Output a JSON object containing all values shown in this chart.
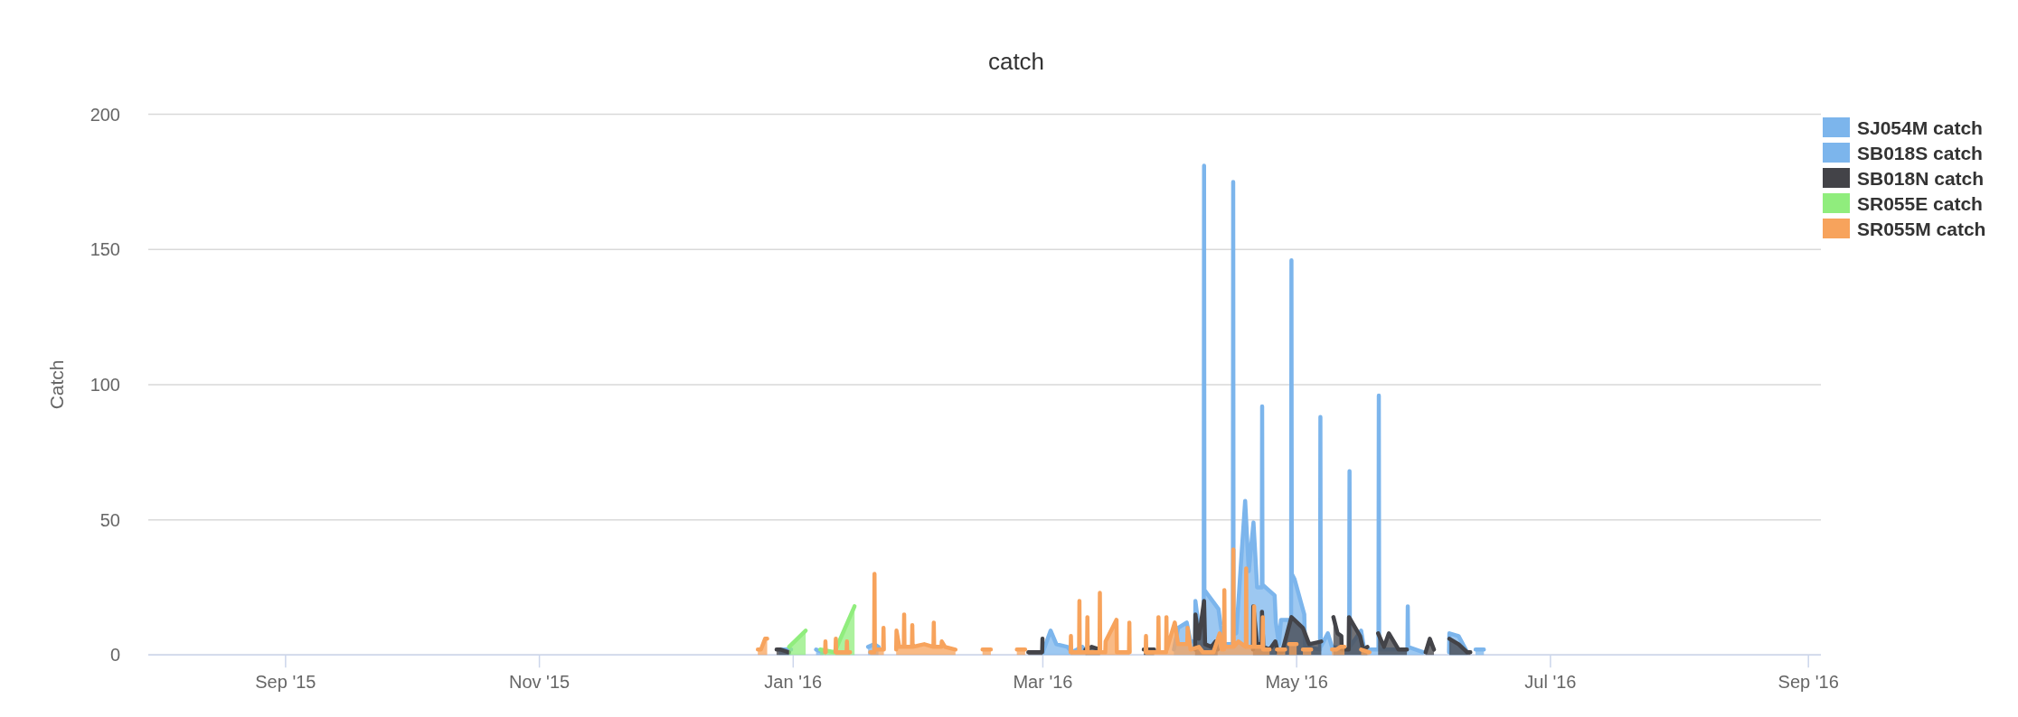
{
  "chart_data": {
    "type": "area",
    "title": "catch",
    "ylabel": "Catch",
    "xlim": [
      "2015-07-30",
      "2016-09-04"
    ],
    "xticks": [
      {
        "value": "2015-09-01",
        "label": "Sep '15"
      },
      {
        "value": "2015-11-01",
        "label": "Nov '15"
      },
      {
        "value": "2016-01-01",
        "label": "Jan '16"
      },
      {
        "value": "2016-03-01",
        "label": "Mar '16"
      },
      {
        "value": "2016-05-01",
        "label": "May '16"
      },
      {
        "value": "2016-07-01",
        "label": "Jul '16"
      },
      {
        "value": "2016-09-01",
        "label": "Sep '16"
      }
    ],
    "ylim": [
      0,
      200
    ],
    "yticks": [
      0,
      50,
      100,
      150,
      200
    ],
    "grid": "y",
    "legend": "top right",
    "series": [
      {
        "name": "SJ054M catch",
        "color": "#7cb5ec",
        "x": [
          "2015-12-28T12:00",
          "2015-12-31T12:00",
          "2016-01-02T00:00",
          "2016-01-06T12:00",
          "2016-01-08T06:00",
          "2016-01-10T00:00",
          "2016-01-19T00:00",
          "2016-01-20T12:00",
          "2016-01-21T12:00",
          "2016-01-24T00:00",
          "2016-03-01T00:00",
          "2016-03-02T21:00",
          "2016-03-04T06:00",
          "2016-03-06T22:00",
          "2016-03-08T00:00",
          "2016-03-10T12:00",
          "2016-03-11T12:00"
        ],
        "values": [
          2,
          2,
          null,
          2,
          1,
          null,
          3,
          4,
          3,
          null,
          1,
          9,
          4,
          3,
          1,
          3,
          1
        ]
      },
      {
        "name": "SB018S catch",
        "color": "#7cb5ec",
        "x": [
          "2016-04-01T12:00",
          "2016-04-02T12:00",
          "2016-04-04T14:00",
          "2016-04-05T12:00",
          "2016-04-06T14:00",
          "2016-04-06T16:00",
          "2016-04-07T12:00",
          "2016-04-08T16:00",
          "2016-04-08T18:00",
          "2016-04-08T20:00",
          "2016-04-12T05:00",
          "2016-04-12T18:00",
          "2016-04-13T12:00",
          "2016-04-15T16:00",
          "2016-04-15T18:00",
          "2016-04-15T20:00",
          "2016-04-16T12:00",
          "2016-04-18T15:00",
          "2016-04-19T12:00",
          "2016-04-20T15:00",
          "2016-04-21T12:00",
          "2016-04-22T15:00",
          "2016-04-22T17:00",
          "2016-04-22T19:00",
          "2016-04-25T17:00",
          "2016-04-26T00:00",
          "2016-04-26T18:00",
          "2016-04-27T06:00",
          "2016-04-29T16:00",
          "2016-04-29T18:00",
          "2016-04-29T20:00",
          "2016-04-30T12:00",
          "2016-05-02T20:00",
          "2016-05-03T00:00",
          "2016-05-06T15:00",
          "2016-05-06T17:00",
          "2016-05-06T19:00",
          "2016-05-08T12:00",
          "2016-05-09T12:00",
          "2016-05-13T15:00",
          "2016-05-13T17:00",
          "2016-05-13T19:00",
          "2016-05-16T12:00",
          "2016-05-17T06:00",
          "2016-05-20T16:00",
          "2016-05-20T18:00",
          "2016-05-20T20:00",
          "2016-05-27T15:00",
          "2016-05-27T17:00",
          "2016-05-27T19:00",
          "2016-05-31T12:00",
          "2016-06-03T00:00",
          "2016-06-06T15:00",
          "2016-06-06T17:00",
          "2016-06-08T22:00",
          "2016-06-11T00:00",
          "2016-06-12T00:00",
          "2016-06-13T00:00",
          "2016-06-15T00:00"
        ],
        "values": [
          2,
          10,
          12,
          5,
          5,
          20,
          10,
          12,
          181,
          24,
          17,
          11,
          4,
          4,
          175,
          10,
          8,
          57,
          31,
          49,
          25,
          25,
          92,
          26,
          22,
          12,
          4,
          13,
          13,
          146,
          30,
          28,
          15,
          3,
          2,
          88,
          3,
          8,
          3,
          2,
          68,
          3,
          9,
          2,
          2,
          96,
          2,
          2,
          18,
          3,
          1,
          null,
          1,
          8,
          7,
          1,
          null,
          2,
          2
        ]
      },
      {
        "name": "SB018N catch",
        "color": "#434348",
        "x": [
          "2015-12-28T00:00",
          "2015-12-29T00:00",
          "2015-12-31T00:00",
          "2016-01-02T00:00",
          "2016-02-26T12:00",
          "2016-02-29T20:00",
          "2016-02-29T22:00",
          "2016-03-01T12:00",
          "2016-03-11T06:00",
          "2016-03-12T18:00",
          "2016-03-14T18:00",
          "2016-03-16T00:00",
          "2016-03-25T06:00",
          "2016-03-27T18:00",
          "2016-03-29T00:00",
          "2016-04-06T14:00",
          "2016-04-06T16:00",
          "2016-04-07T12:00",
          "2016-04-08T18:00",
          "2016-04-09T00:00",
          "2016-04-10T12:00",
          "2016-04-11T12:00",
          "2016-04-12T00:00",
          "2016-04-13T00:00",
          "2016-04-20T12:00",
          "2016-04-20T14:00",
          "2016-04-21T12:00",
          "2016-04-22T14:00",
          "2016-04-22T16:00",
          "2016-04-23T00:00",
          "2016-04-24T12:00",
          "2016-04-25T21:00",
          "2016-04-26T12:00",
          "2016-04-27T12:00",
          "2016-04-29T18:00",
          "2016-05-02T12:00",
          "2016-05-04T00:00",
          "2016-05-06T22:00",
          "2016-05-07T12:00",
          "2016-05-09T20:00",
          "2016-05-10T20:00",
          "2016-05-11T18:00",
          "2016-05-11T20:00",
          "2016-05-13T12:00",
          "2016-05-13T14:00",
          "2016-05-16T06:00",
          "2016-05-17T00:00",
          "2016-05-18T00:00",
          "2016-05-19T00:00",
          "2016-05-20T14:00",
          "2016-05-22T00:00",
          "2016-05-23T04:00",
          "2016-05-25T12:00",
          "2016-05-27T12:00",
          "2016-05-29T00:00",
          "2016-06-01T00:00",
          "2016-06-02T00:00",
          "2016-06-03T00:00",
          "2016-06-04T00:00",
          "2016-06-06T17:00",
          "2016-06-08T22:00",
          "2016-06-11T00:00",
          "2016-06-11T18:00"
        ],
        "values": [
          2,
          2,
          1,
          null,
          1,
          1,
          6,
          null,
          2,
          3,
          2,
          null,
          2,
          2,
          null,
          2,
          15,
          6,
          20,
          4,
          3,
          5,
          2,
          null,
          2,
          18,
          4,
          4,
          16,
          3,
          2,
          5,
          1,
          1,
          14,
          10,
          4,
          5,
          null,
          14,
          8,
          7,
          2,
          2,
          14,
          7,
          2,
          3,
          null,
          8,
          3,
          8,
          2,
          2,
          null,
          1,
          6,
          2,
          null,
          6,
          4,
          1,
          1
        ]
      },
      {
        "name": "SR055E catch",
        "color": "#90ed7d",
        "x": [
          "2015-12-31T00:00",
          "2016-01-04T00:00",
          "2016-01-05T12:00",
          "2016-01-07T12:00",
          "2016-01-10T22:00",
          "2016-01-15T18:00"
        ],
        "values": [
          3,
          9,
          null,
          2,
          1,
          18
        ]
      },
      {
        "name": "SR055M catch",
        "color": "#f7a35c",
        "x": [
          "2015-12-23T12:00",
          "2015-12-24T06:00",
          "2015-12-25T06:00",
          "2015-12-25T18:00",
          "2015-12-26T12:00",
          "2016-01-08T16:00",
          "2016-01-08T18:00",
          "2016-01-08T20:00",
          "2016-01-10T00:00",
          "2016-01-11T04:00",
          "2016-01-11T06:00",
          "2016-01-11T08:00",
          "2016-01-13T20:00",
          "2016-01-13T22:00",
          "2016-01-14T00:00",
          "2016-01-14T16:00",
          "2016-01-17T00:00",
          "2016-01-19T12:00",
          "2016-01-20T11:00",
          "2016-01-20T13:00",
          "2016-01-20T15:00",
          "2016-01-22T15:00",
          "2016-01-22T17:00",
          "2016-01-22T19:00",
          "2016-01-24T00:00",
          "2016-01-25T18:00",
          "2016-01-25T20:00",
          "2016-01-26T12:00",
          "2016-01-27T14:00",
          "2016-01-27T16:00",
          "2016-01-27T18:00",
          "2016-01-29T13:00",
          "2016-01-29T15:00",
          "2016-01-29T17:00",
          "2016-02-01T12:00",
          "2016-02-03T17:00",
          "2016-02-03T19:00",
          "2016-02-03T21:00",
          "2016-02-05T15:00",
          "2016-02-05T17:00",
          "2016-02-06T12:00",
          "2016-02-09T00:00",
          "2016-02-12T00:00",
          "2016-02-15T12:00",
          "2016-02-17T12:00",
          "2016-02-20T00:00",
          "2016-02-23T18:00",
          "2016-02-25T18:00",
          "2016-02-27T00:00",
          "2016-03-07T16:00",
          "2016-03-07T18:00",
          "2016-03-07T20:00",
          "2016-03-09T17:00",
          "2016-03-09T19:00",
          "2016-03-09T21:00",
          "2016-03-11T15:00",
          "2016-03-11T17:00",
          "2016-03-11T19:00",
          "2016-03-14T15:00",
          "2016-03-14T17:00",
          "2016-03-14T19:00",
          "2016-03-16T00:00",
          "2016-03-16T02:00",
          "2016-03-18T17:00",
          "2016-03-18T19:00",
          "2016-03-21T17:00",
          "2016-03-21T19:00",
          "2016-03-21T21:00",
          "2016-03-23T00:00",
          "2016-03-25T17:00",
          "2016-03-25T19:00",
          "2016-03-25T21:00",
          "2016-03-28T17:00",
          "2016-03-28T19:00",
          "2016-03-28T21:00",
          "2016-03-30T15:00",
          "2016-03-30T17:00",
          "2016-03-30T19:00",
          "2016-04-01T17:00",
          "2016-04-02T12:00",
          "2016-04-04T17:00",
          "2016-04-04T19:00",
          "2016-04-05T12:00",
          "2016-04-07T12:00",
          "2016-04-08T12:00",
          "2016-04-11T00:00",
          "2016-04-12T12:00",
          "2016-04-13T00:00",
          "2016-04-13T13:00",
          "2016-04-13T15:00",
          "2016-04-13T17:00",
          "2016-04-15T17:00",
          "2016-04-15T19:00",
          "2016-04-15T21:00",
          "2016-04-17T00:00",
          "2016-04-18T19:00",
          "2016-04-18T21:00",
          "2016-04-18T23:00",
          "2016-04-20T17:00",
          "2016-04-20T19:00",
          "2016-04-20T21:00",
          "2016-04-22T19:00",
          "2016-04-22T21:00",
          "2016-04-22T23:00",
          "2016-04-24T12:00",
          "2016-04-25T06:00",
          "2016-04-26T06:00",
          "2016-04-28T06:00",
          "2016-04-28T18:00",
          "2016-04-29T04:00",
          "2016-05-01T00:00",
          "2016-05-01T12:00",
          "2016-05-02T12:00",
          "2016-05-04T12:00",
          "2016-05-06T00:00",
          "2016-05-09T12:00",
          "2016-05-10T12:00",
          "2016-05-11T12:00",
          "2016-05-12T12:00",
          "2016-05-14T00:00",
          "2016-05-16T12:00",
          "2016-05-18T12:00"
        ],
        "values": [
          2,
          2,
          6,
          6,
          null,
          1,
          5,
          1,
          null,
          1,
          6,
          1,
          1,
          5,
          1,
          1,
          null,
          1,
          1,
          30,
          2,
          2,
          10,
          2,
          null,
          2,
          9,
          3,
          3,
          15,
          3,
          3,
          11,
          3,
          4,
          3,
          12,
          3,
          3,
          5,
          3,
          2,
          null,
          2,
          2,
          null,
          2,
          2,
          null,
          1,
          7,
          1,
          1,
          20,
          1,
          1,
          14,
          1,
          1,
          23,
          1,
          1,
          5,
          13,
          1,
          1,
          12,
          1,
          null,
          1,
          7,
          1,
          1,
          14,
          1,
          1,
          14,
          2,
          12,
          4,
          4,
          10,
          2,
          3,
          1,
          1,
          8,
          2,
          2,
          24,
          3,
          3,
          39,
          3,
          5,
          3,
          32,
          3,
          3,
          18,
          3,
          3,
          14,
          2,
          2,
          null,
          2,
          2,
          null,
          4,
          4,
          null,
          2,
          2,
          null,
          2,
          2,
          3,
          3,
          null,
          2,
          1
        ]
      }
    ]
  }
}
